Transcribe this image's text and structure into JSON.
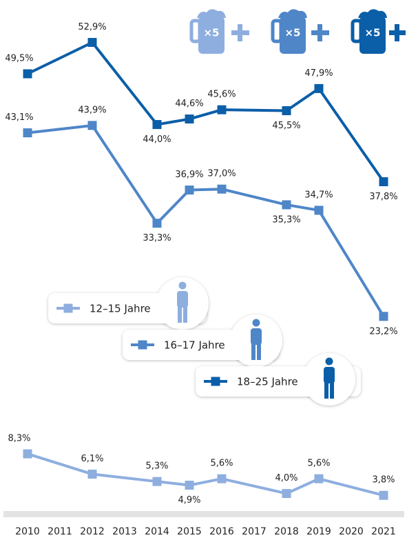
{
  "chart_data": {
    "type": "line",
    "x": [
      2010,
      2012,
      2014,
      2015,
      2016,
      2018,
      2019,
      2021
    ],
    "xlim": [
      2010,
      2021
    ],
    "xticks": [
      2010,
      2011,
      2012,
      2013,
      2014,
      2015,
      2016,
      2017,
      2018,
      2019,
      2020,
      2021
    ],
    "ylim": [
      1.8,
      57.5
    ],
    "annotations": [
      "×5",
      "×5",
      "×5"
    ],
    "series": [
      {
        "name": "12–15 Jahre",
        "color": "#8eaedf",
        "values": [
          8.3,
          6.1,
          5.3,
          4.9,
          5.6,
          4.0,
          5.6,
          3.8
        ],
        "value_labels": [
          "8,3%",
          "6,1%",
          "5,3%",
          "4,9%",
          "5,6%",
          "4,0%",
          "5,6%",
          "3,8%"
        ]
      },
      {
        "name": "16–17 Jahre",
        "color": "#4e86c8",
        "values": [
          43.1,
          43.9,
          33.3,
          36.9,
          37.0,
          35.3,
          34.7,
          23.2
        ],
        "value_labels": [
          "43,1%",
          "43,9%",
          "33,3%",
          "36,9%",
          "37,0%",
          "35,3%",
          "34,7%",
          "23,2%"
        ]
      },
      {
        "name": "18–25 Jahre",
        "color": "#0b5ea8",
        "values": [
          49.5,
          52.9,
          44.0,
          44.6,
          45.6,
          45.5,
          47.9,
          37.8
        ],
        "value_labels": [
          "49,5%",
          "52,9%",
          "44,0%",
          "44,6%",
          "45,6%",
          "45,5%",
          "47,9%",
          "37,8%"
        ]
      }
    ]
  }
}
